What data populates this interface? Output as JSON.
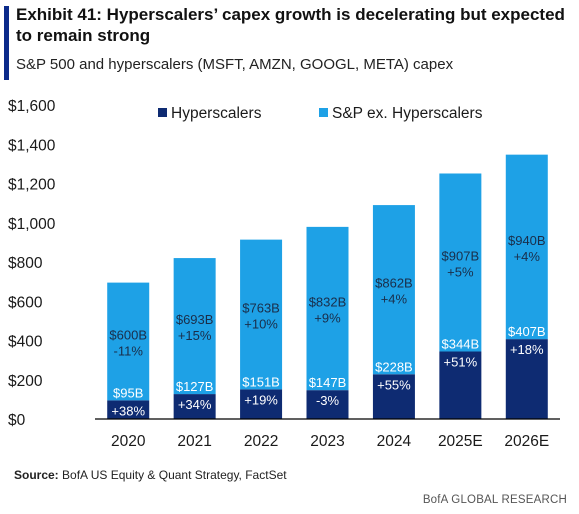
{
  "header": {
    "title": "Exhibit 41: Hyperscalers’ capex growth is decelerating but expected to remain strong",
    "subtitle": "S&P 500 and hyperscalers (MSFT, AMZN, GOOGL, META) capex"
  },
  "footer": {
    "source_label": "Source:",
    "source_text": " BofA US Equity & Quant Strategy, FactSet",
    "brand": "BofA GLOBAL RESEARCH"
  },
  "colors": {
    "accent": "#0b2a8a",
    "hyperscalers": "#0e2b72",
    "sp_ex": "#1ea1e6"
  },
  "chart_data": {
    "type": "bar",
    "stacked": true,
    "categories": [
      "2020",
      "2021",
      "2022",
      "2023",
      "2024",
      "2025E",
      "2026E"
    ],
    "series": [
      {
        "name": "Hyperscalers",
        "values": [
          95,
          127,
          151,
          147,
          228,
          344,
          407
        ],
        "value_labels": [
          "$95B",
          "$127B",
          "$151B",
          "$147B",
          "$228B",
          "$344B",
          "$407B"
        ],
        "growth_labels": [
          "+38%",
          "+34%",
          "+19%",
          "-3%",
          "+55%",
          "+51%",
          "+18%"
        ]
      },
      {
        "name": "S&P ex. Hyperscalers",
        "values": [
          600,
          693,
          763,
          832,
          862,
          907,
          940
        ],
        "value_labels": [
          "$600B",
          "$693B",
          "$763B",
          "$832B",
          "$862B",
          "$907B",
          "$940B"
        ],
        "growth_labels": [
          "-11%",
          "+15%",
          "+10%",
          "+9%",
          "+4%",
          "+5%",
          "+4%"
        ]
      }
    ],
    "ylim": [
      0,
      1600
    ],
    "yticks": [
      0,
      200,
      400,
      600,
      800,
      1000,
      1200,
      1400,
      1600
    ],
    "ytick_labels": [
      "$0",
      "$200",
      "$400",
      "$600",
      "$800",
      "$1,000",
      "$1,200",
      "$1,400",
      "$1,600"
    ],
    "grid": false,
    "legend_position": "top"
  }
}
